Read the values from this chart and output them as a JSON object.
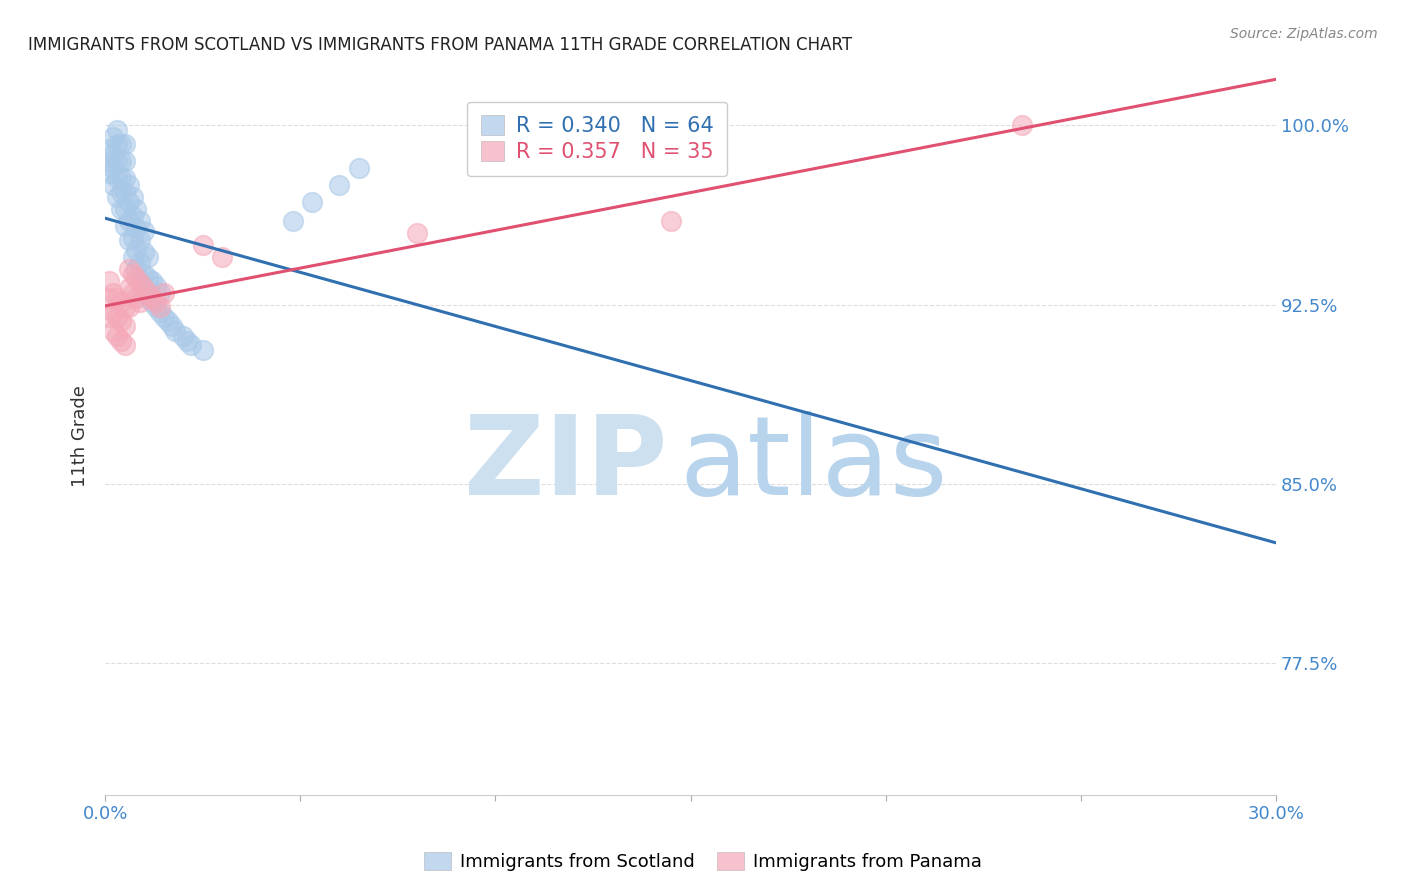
{
  "title": "IMMIGRANTS FROM SCOTLAND VS IMMIGRANTS FROM PANAMA 11TH GRADE CORRELATION CHART",
  "source": "Source: ZipAtlas.com",
  "ylabel_label": "11th Grade",
  "legend_scotland": "Immigrants from Scotland",
  "legend_panama": "Immigrants from Panama",
  "R_scotland": 0.34,
  "N_scotland": 64,
  "R_panama": 0.357,
  "N_panama": 35,
  "scotland_color": "#a8c8e8",
  "panama_color": "#f4a8b8",
  "scotland_line_color": "#3070b0",
  "panama_line_color": "#e05070",
  "xlim": [
    0.0,
    0.3
  ],
  "ylim": [
    0.72,
    1.02
  ],
  "ytick_vals": [
    1.0,
    0.925,
    0.85,
    0.775
  ],
  "ytick_labels": [
    "100.0%",
    "92.5%",
    "85.0%",
    "77.5%"
  ],
  "scotland_x": [
    0.001,
    0.001,
    0.001,
    0.002,
    0.002,
    0.002,
    0.002,
    0.003,
    0.003,
    0.003,
    0.003,
    0.003,
    0.004,
    0.004,
    0.004,
    0.004,
    0.004,
    0.005,
    0.005,
    0.005,
    0.005,
    0.005,
    0.005,
    0.006,
    0.006,
    0.006,
    0.006,
    0.007,
    0.007,
    0.007,
    0.007,
    0.008,
    0.008,
    0.008,
    0.008,
    0.009,
    0.009,
    0.009,
    0.009,
    0.01,
    0.01,
    0.01,
    0.01,
    0.011,
    0.011,
    0.011,
    0.012,
    0.012,
    0.013,
    0.013,
    0.014,
    0.014,
    0.015,
    0.016,
    0.017,
    0.018,
    0.02,
    0.021,
    0.022,
    0.025,
    0.048,
    0.053,
    0.06,
    0.065
  ],
  "scotland_y": [
    0.98,
    0.985,
    0.99,
    0.975,
    0.982,
    0.988,
    0.995,
    0.97,
    0.978,
    0.985,
    0.992,
    0.998,
    0.965,
    0.972,
    0.978,
    0.985,
    0.992,
    0.958,
    0.965,
    0.972,
    0.978,
    0.985,
    0.992,
    0.952,
    0.96,
    0.968,
    0.975,
    0.945,
    0.953,
    0.962,
    0.97,
    0.94,
    0.948,
    0.957,
    0.965,
    0.935,
    0.943,
    0.952,
    0.96,
    0.93,
    0.938,
    0.947,
    0.956,
    0.928,
    0.936,
    0.945,
    0.926,
    0.935,
    0.924,
    0.933,
    0.922,
    0.93,
    0.92,
    0.918,
    0.916,
    0.914,
    0.912,
    0.91,
    0.908,
    0.906,
    0.96,
    0.968,
    0.975,
    0.982
  ],
  "panama_x": [
    0.001,
    0.001,
    0.001,
    0.002,
    0.002,
    0.002,
    0.003,
    0.003,
    0.003,
    0.004,
    0.004,
    0.004,
    0.005,
    0.005,
    0.005,
    0.006,
    0.006,
    0.006,
    0.007,
    0.007,
    0.008,
    0.008,
    0.009,
    0.009,
    0.01,
    0.011,
    0.012,
    0.013,
    0.014,
    0.015,
    0.025,
    0.03,
    0.08,
    0.145,
    0.235
  ],
  "panama_y": [
    0.935,
    0.928,
    0.92,
    0.93,
    0.922,
    0.914,
    0.928,
    0.92,
    0.912,
    0.926,
    0.918,
    0.91,
    0.924,
    0.916,
    0.908,
    0.94,
    0.932,
    0.924,
    0.938,
    0.93,
    0.936,
    0.928,
    0.934,
    0.926,
    0.932,
    0.93,
    0.928,
    0.926,
    0.924,
    0.93,
    0.95,
    0.945,
    0.955,
    0.96,
    1.0
  ]
}
